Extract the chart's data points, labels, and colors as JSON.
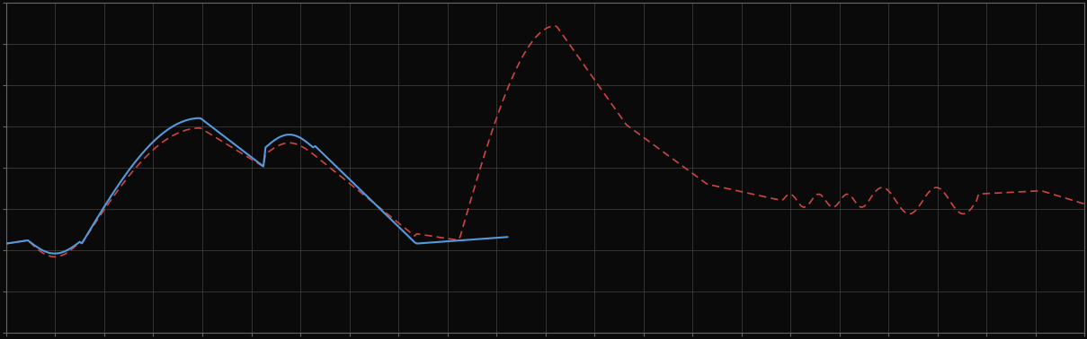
{
  "background_color": "#0a0a0a",
  "plot_bg_color": "#0a0a0a",
  "grid_color": "#444444",
  "blue_line_color": "#5599dd",
  "red_line_color": "#cc4444",
  "spine_color": "#666666",
  "tick_color": "#666666",
  "xlim": [
    0,
    1
  ],
  "ylim": [
    0,
    1
  ],
  "figsize": [
    12.09,
    3.78
  ],
  "dpi": 100
}
